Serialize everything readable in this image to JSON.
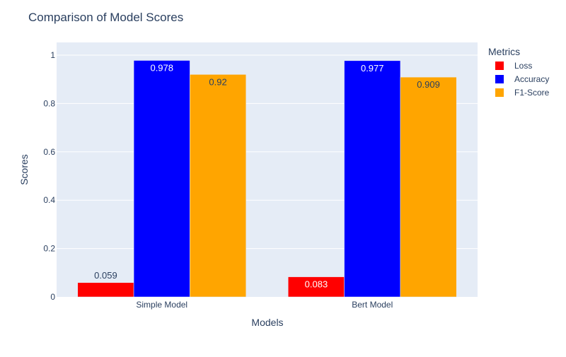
{
  "chart_data": {
    "type": "bar",
    "title": "Comparison of Model Scores",
    "xlabel": "Models",
    "ylabel": "Scores",
    "categories": [
      "Simple Model",
      "Bert Model"
    ],
    "series": [
      {
        "name": "Loss",
        "values": [
          0.059,
          0.083
        ],
        "color": "#ff0000",
        "label_color": "#ffffff"
      },
      {
        "name": "Accuracy",
        "values": [
          0.978,
          0.977
        ],
        "color": "#0000ff",
        "label_color": "#ffffff"
      },
      {
        "name": "F1-Score",
        "values": [
          0.92,
          0.909
        ],
        "color": "#ffa500",
        "label_color": "#2a3f5f"
      }
    ],
    "data_labels": [
      [
        "0.059",
        "0.083"
      ],
      [
        "0.978",
        "0.977"
      ],
      [
        "0.92",
        "0.909"
      ]
    ],
    "yticks": [
      0,
      0.2,
      0.4,
      0.6,
      0.8,
      1
    ],
    "ytick_labels": [
      "0",
      "0.2",
      "0.4",
      "0.6",
      "0.8",
      "1"
    ],
    "ylim": [
      0,
      1.0526
    ],
    "grid": true,
    "legend": {
      "title": "Metrics",
      "placement": "top-right"
    },
    "colors": {
      "plot_background": "#e5ecf6",
      "grid": "#ffffff",
      "text": "#2a3f5f",
      "tick_text": "#2a3f5f"
    }
  }
}
